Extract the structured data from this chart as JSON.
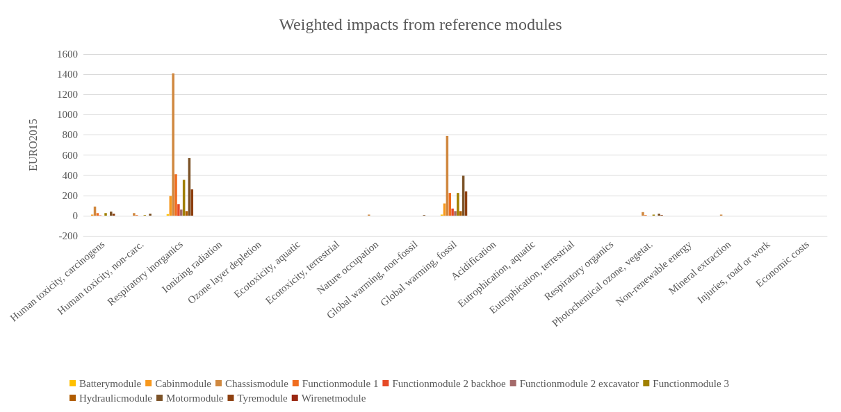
{
  "chart_data": {
    "type": "bar",
    "title": "Weighted impacts from reference modules",
    "ylabel": "EURO2015",
    "categories": [
      "Human toxicity, carcinogens",
      "Human toxicity, non-carc.",
      "Respiratory inorganics",
      "Ionizing radiation",
      "Ozone layer depletion",
      "Ecotoxicity, aquatic",
      "Ecotoxicity, terrestrial",
      "Nature occupation",
      "Global warming, non-fossil",
      "Global warming, fossil",
      "Acidification",
      "Eutrophication, aquatic",
      "Eutrophication, terrestrial",
      "Respiratory organics",
      "Photochemical ozone, vegetat.",
      "Non-renewable energy",
      "Mineral extraction",
      "Injuries, road or work",
      "Economic costs"
    ],
    "series": [
      {
        "name": "Batterymodule",
        "color": "#ffc000",
        "values": [
          0,
          0,
          15,
          0,
          0,
          0,
          0,
          0,
          0,
          10,
          0,
          0,
          0,
          0,
          0,
          0,
          0,
          0,
          0
        ]
      },
      {
        "name": "Cabinmodule",
        "color": "#f7981d",
        "values": [
          10,
          0,
          195,
          0,
          0,
          0,
          0,
          0,
          0,
          120,
          0,
          0,
          0,
          0,
          0,
          0,
          0,
          0,
          0
        ]
      },
      {
        "name": "Chassismodule",
        "color": "#d0883f",
        "values": [
          90,
          25,
          1410,
          0,
          0,
          0,
          0,
          10,
          0,
          790,
          0,
          0,
          0,
          0,
          35,
          0,
          10,
          0,
          0
        ]
      },
      {
        "name": "Functionmodule 1",
        "color": "#f06d1f",
        "values": [
          25,
          5,
          410,
          0,
          0,
          0,
          0,
          0,
          0,
          225,
          0,
          0,
          0,
          0,
          5,
          0,
          0,
          0,
          0
        ]
      },
      {
        "name": "Functionmodule 2 backhoe",
        "color": "#e64a27",
        "values": [
          3,
          0,
          115,
          0,
          0,
          0,
          0,
          0,
          0,
          70,
          0,
          0,
          0,
          0,
          0,
          0,
          0,
          0,
          0
        ]
      },
      {
        "name": "Functionmodule 2 excavator",
        "color": "#a46a6a",
        "values": [
          0,
          0,
          60,
          0,
          0,
          0,
          0,
          0,
          0,
          45,
          0,
          0,
          0,
          0,
          0,
          0,
          0,
          0,
          0
        ]
      },
      {
        "name": "Functionmodule 3",
        "color": "#a08000",
        "values": [
          25,
          5,
          355,
          0,
          0,
          0,
          0,
          0,
          0,
          225,
          0,
          0,
          0,
          0,
          10,
          0,
          0,
          0,
          0
        ]
      },
      {
        "name": "Hydraulicmodule",
        "color": "#b05c00",
        "values": [
          0,
          0,
          45,
          0,
          0,
          0,
          0,
          0,
          0,
          45,
          0,
          0,
          0,
          0,
          0,
          0,
          0,
          0,
          0
        ]
      },
      {
        "name": "Motormodule",
        "color": "#7c5328",
        "values": [
          40,
          20,
          570,
          0,
          0,
          0,
          0,
          0,
          5,
          395,
          0,
          0,
          0,
          0,
          20,
          0,
          0,
          0,
          0
        ]
      },
      {
        "name": "Tyremodule",
        "color": "#8e4010",
        "values": [
          20,
          0,
          260,
          0,
          0,
          0,
          0,
          0,
          0,
          240,
          0,
          0,
          0,
          0,
          5,
          0,
          0,
          0,
          0
        ]
      },
      {
        "name": "Wirenetmodule",
        "color": "#9a2812",
        "values": [
          0,
          0,
          0,
          0,
          0,
          0,
          0,
          0,
          0,
          0,
          0,
          0,
          0,
          0,
          0,
          0,
          0,
          0,
          0
        ]
      }
    ],
    "ylim": [
      -200,
      1600
    ],
    "yticks": [
      -200,
      0,
      200,
      400,
      600,
      800,
      1000,
      1200,
      1400,
      1600
    ],
    "grid": "y",
    "legend": "bottom"
  }
}
